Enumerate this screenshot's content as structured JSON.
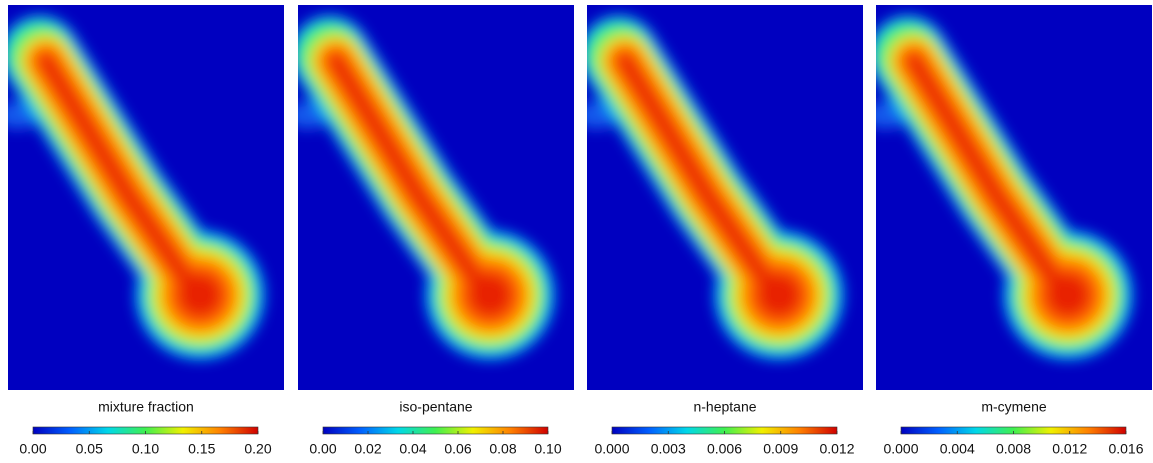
{
  "chart_data": [
    {
      "type": "heatmap",
      "title": "mixture fraction",
      "xlim": [
        0,
        0.2
      ],
      "xticks": [
        {
          "value": 0,
          "label": "0.00"
        },
        0.05,
        {
          "value": 0.1,
          "label": "0.10"
        },
        0.15,
        {
          "value": 0.2,
          "label": "0.20"
        }
      ],
      "colors": [
        "#0000c0",
        "#0060ff",
        "#00d8e8",
        "#40f050",
        "#f0f000",
        "#ff8000",
        "#d00000"
      ]
    },
    {
      "type": "heatmap",
      "title": "iso-pentane",
      "xlim": [
        0,
        0.1
      ],
      "xticks": [
        {
          "value": 0,
          "label": "0.00"
        },
        0.02,
        0.04,
        0.06,
        0.08,
        {
          "value": 0.1,
          "label": "0.10"
        }
      ],
      "colors": [
        "#0000c0",
        "#0060ff",
        "#00d8e8",
        "#40f050",
        "#f0f000",
        "#ff8000",
        "#d00000"
      ]
    },
    {
      "type": "heatmap",
      "title": "n-heptane",
      "xlim": [
        0,
        0.012
      ],
      "xticks": [
        {
          "value": 0,
          "label": "0.000"
        },
        0.003,
        0.006,
        0.009,
        0.012
      ],
      "colors": [
        "#0000c0",
        "#0060ff",
        "#00d8e8",
        "#40f050",
        "#f0f000",
        "#ff8000",
        "#d00000"
      ]
    },
    {
      "type": "heatmap",
      "title": "m-cymene",
      "xlim": [
        0,
        0.016
      ],
      "xticks": [
        {
          "value": 0,
          "label": "0.000"
        },
        0.004,
        0.008,
        0.012,
        0.016
      ],
      "colors": [
        "#0000c0",
        "#0060ff",
        "#00d8e8",
        "#40f050",
        "#f0f000",
        "#ff8000",
        "#d00000"
      ]
    }
  ]
}
